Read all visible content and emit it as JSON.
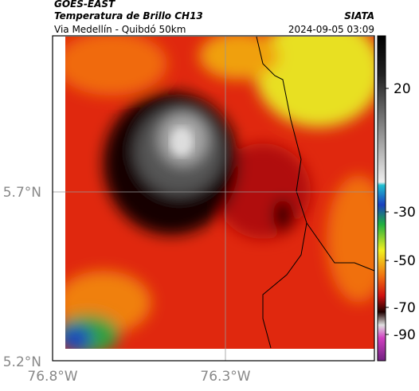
{
  "header": {
    "satellite": "GOES-EAST",
    "product": "Temperatura de Brillo CH13",
    "source": "SIATA",
    "region": "Via Medellín - Quibdó 50km",
    "datetime": "2024-09-05 03:09"
  },
  "map": {
    "lat_labels": [
      "5.7°N",
      "5.2°N"
    ],
    "lon_labels": [
      "76.8°W",
      "76.3°W"
    ]
  },
  "colorbar": {
    "labels": [
      "20",
      "-30",
      "-50",
      "-70",
      "-90"
    ]
  }
}
